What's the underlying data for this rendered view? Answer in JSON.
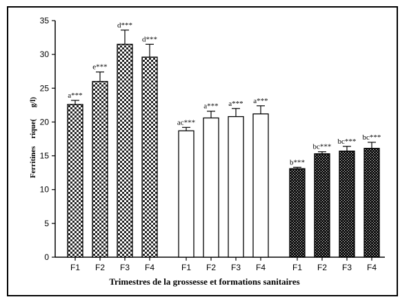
{
  "chart_data": {
    "type": "bar",
    "xlabel": "Trimestres de la grossesse et formations sanitaires",
    "ylabel": "Ferritines    rique(      g/l)",
    "ylim": [
      0,
      35
    ],
    "yticks": [
      0,
      5,
      10,
      15,
      20,
      25,
      30,
      35
    ],
    "grid": false,
    "groups": [
      {
        "pattern": "checker",
        "bars": [
          {
            "category": "F1",
            "value": 22.6,
            "error": 0.6,
            "label": "a***"
          },
          {
            "category": "F2",
            "value": 26.0,
            "error": 1.4,
            "label": "e***"
          },
          {
            "category": "F3",
            "value": 31.5,
            "error": 2.1,
            "label": "d***"
          },
          {
            "category": "F4",
            "value": 29.6,
            "error": 1.9,
            "label": "d***"
          }
        ]
      },
      {
        "pattern": "white",
        "bars": [
          {
            "category": "F1",
            "value": 18.7,
            "error": 0.5,
            "label": "ac***"
          },
          {
            "category": "F2",
            "value": 20.6,
            "error": 1.0,
            "label": "a***"
          },
          {
            "category": "F3",
            "value": 20.8,
            "error": 1.2,
            "label": "a***"
          },
          {
            "category": "F4",
            "value": 21.2,
            "error": 1.2,
            "label": "a***"
          }
        ]
      },
      {
        "pattern": "dense",
        "bars": [
          {
            "category": "F1",
            "value": 13.1,
            "error": 0.2,
            "label": "b***"
          },
          {
            "category": "F2",
            "value": 15.3,
            "error": 0.3,
            "label": "bc***"
          },
          {
            "category": "F3",
            "value": 15.7,
            "error": 0.7,
            "label": "bc***"
          },
          {
            "category": "F4",
            "value": 16.1,
            "error": 0.9,
            "label": "bc***"
          }
        ]
      }
    ]
  }
}
